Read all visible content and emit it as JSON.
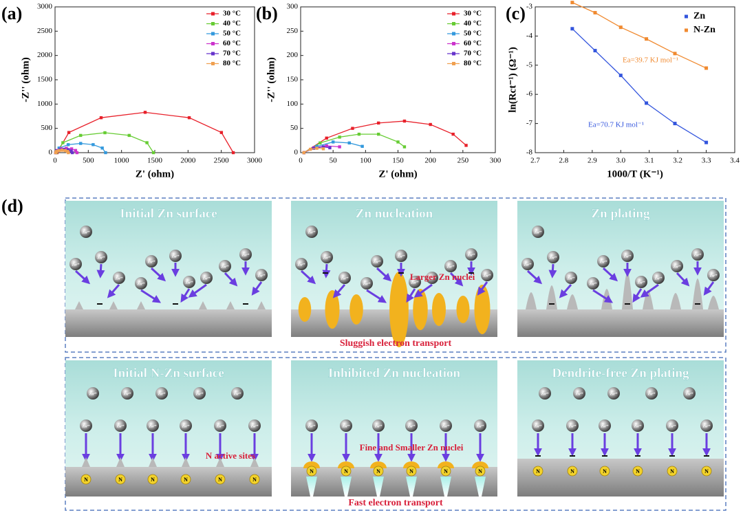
{
  "chart_data": [
    {
      "type": "line",
      "panel_label": "(a)",
      "x_label": "Z' (ohm)",
      "y_label": "-Z'' (ohm)",
      "xlim": [
        0,
        3000
      ],
      "ylim": [
        0,
        3000
      ],
      "xticks": [
        0,
        500,
        1000,
        1500,
        2000,
        2500,
        3000
      ],
      "yticks": [
        0,
        500,
        1000,
        1500,
        2000,
        2500,
        3000
      ],
      "legend": "upper right",
      "series": [
        {
          "name": "30 °C",
          "color": "#e8202a",
          "x": [
            30,
            208,
            693,
            1355,
            2018,
            2502,
            2680
          ],
          "values": [
            0,
            415,
            719,
            830,
            719,
            415,
            0
          ]
        },
        {
          "name": "40 °C",
          "color": "#66cc33",
          "x": [
            20,
            118,
            385,
            750,
            1115,
            1382,
            1480
          ],
          "values": [
            0,
            205,
            355,
            410,
            355,
            205,
            0
          ]
        },
        {
          "name": "50 °C",
          "color": "#3399dd",
          "x": [
            10,
            60,
            198,
            385,
            573,
            710,
            760
          ],
          "values": [
            0,
            95,
            165,
            190,
            165,
            95,
            0
          ]
        },
        {
          "name": "60 °C",
          "color": "#cc33cc",
          "x": [
            10,
            31,
            90,
            170,
            250,
            309,
            330
          ],
          "values": [
            0,
            45,
            78,
            90,
            78,
            45,
            0
          ]
        },
        {
          "name": "70 °C",
          "color": "#6633cc",
          "x": [
            10,
            27,
            73,
            135,
            198,
            243,
            260
          ],
          "values": [
            0,
            35,
            61,
            70,
            61,
            35,
            0
          ]
        },
        {
          "name": "80 °C",
          "color": "#f0a050",
          "x": [
            10,
            23,
            58,
            105,
            153,
            187,
            200
          ],
          "values": [
            0,
            25,
            43,
            50,
            43,
            25,
            0
          ]
        }
      ]
    },
    {
      "type": "line",
      "panel_label": "(b)",
      "x_label": "Z' (ohm)",
      "y_label": "-Z'' (ohm)",
      "xlim": [
        0,
        300
      ],
      "ylim": [
        0,
        300
      ],
      "xticks": [
        0,
        50,
        100,
        150,
        200,
        250,
        300
      ],
      "yticks": [
        0,
        50,
        100,
        150,
        200,
        250,
        300
      ],
      "legend": "upper right",
      "series": [
        {
          "name": "30 °C",
          "color": "#e8202a",
          "x": [
            5,
            40,
            80,
            120,
            160,
            200,
            235,
            255
          ],
          "values": [
            0,
            30,
            50,
            61,
            65,
            58,
            38,
            15
          ]
        },
        {
          "name": "40 °C",
          "color": "#66cc33",
          "x": [
            5,
            30,
            60,
            90,
            120,
            150,
            160
          ],
          "values": [
            0,
            20,
            32,
            38,
            38,
            22,
            12
          ]
        },
        {
          "name": "50 °C",
          "color": "#3399dd",
          "x": [
            5,
            25,
            50,
            75,
            95
          ],
          "values": [
            0,
            13,
            22,
            20,
            13
          ]
        },
        {
          "name": "60 °C",
          "color": "#cc33cc",
          "x": [
            5,
            20,
            40,
            60
          ],
          "values": [
            0,
            10,
            14,
            12
          ]
        },
        {
          "name": "70 °C",
          "color": "#6633cc",
          "x": [
            5,
            20,
            35,
            45
          ],
          "values": [
            0,
            9,
            12,
            10
          ]
        },
        {
          "name": "80 °C",
          "color": "#f0a050",
          "x": [
            5,
            15,
            25,
            35
          ],
          "values": [
            0,
            7,
            9,
            8
          ]
        }
      ]
    },
    {
      "type": "scatter",
      "panel_label": "(c)",
      "x_label": "1000/T (K⁻¹)",
      "y_label": "ln(Rct⁻¹) (Ω⁻¹)",
      "xlim": [
        2.7,
        3.4
      ],
      "ylim": [
        -8,
        -3
      ],
      "xticks": [
        2.7,
        2.8,
        2.9,
        {
          "value": 3,
          "label": "3.0"
        },
        3.1,
        3.2,
        3.3,
        3.4
      ],
      "yticks": [
        -8,
        -7,
        -6,
        -5,
        -4,
        -3
      ],
      "legend": "upper right",
      "annotations": [
        "Ea=39.7 KJ mol⁻¹",
        "Ea=70.7 KJ mol⁻¹"
      ],
      "series": [
        {
          "name": "Zn",
          "color": "#3355dd",
          "x": [
            2.83,
            2.91,
            3.0,
            3.09,
            3.19,
            3.3
          ],
          "values": [
            -3.75,
            -4.5,
            -5.35,
            -6.3,
            -7.0,
            -7.65
          ]
        },
        {
          "name": "N-Zn",
          "color": "#f08a30",
          "x": [
            2.83,
            2.91,
            3.0,
            3.09,
            3.19,
            3.3
          ],
          "values": [
            -2.85,
            -3.2,
            -3.7,
            -4.1,
            -4.6,
            -5.1
          ]
        }
      ]
    }
  ],
  "diagram": {
    "panel_label": "(d)",
    "ion_label": "Zn²⁺",
    "site_label": "N",
    "panels": [
      {
        "title": "Initial Zn surface"
      },
      {
        "title": "Zn nucleation",
        "note": "Larger Zn nuclei"
      },
      {
        "title": "Zn plating"
      },
      {
        "title": "Initial N-Zn surface",
        "note": "N active sites"
      },
      {
        "title": "Inhibited Zn nucleation",
        "note": "Fine and Smaller Zn nuclei"
      },
      {
        "title": "Dendrite-free Zn plating"
      }
    ],
    "row_captions": [
      "Sluggish electron transport",
      "Fast electron transport"
    ]
  }
}
